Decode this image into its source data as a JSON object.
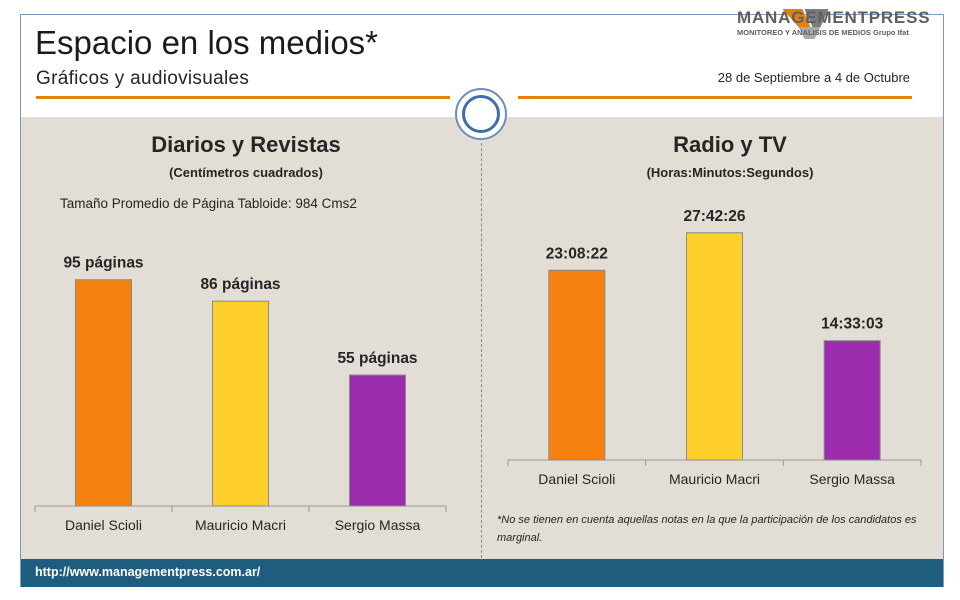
{
  "header": {
    "title": "Espacio en los medios*",
    "subtitle": "Gráficos y audiovisuales",
    "date_range": "28 de Septiembre a 4 de Octubre",
    "logo_name": "MANAGEMENTPRESS",
    "logo_tagline": "MONITOREO Y ANALISIS DE MEDIOS Grupo Ifat",
    "accent_color": "#e3820f"
  },
  "left_panel": {
    "title": "Diarios y Revistas",
    "subtitle": "(Centímetros cuadrados)",
    "note": "Tamaño Promedio de Página Tabloide: 984 Cms2"
  },
  "right_panel": {
    "title": "Radio y TV",
    "subtitle": "(Horas:Minutos:Segundos)",
    "footnote": "*No se tienen en cuenta aquellas notas en la que la participación de los candidatos es marginal."
  },
  "footer": {
    "url": "http://www.managementpress.com.ar/"
  },
  "chart_data": [
    {
      "type": "bar",
      "categories": [
        "Daniel Scioli",
        "Mauricio Macri",
        "Sergio Massa"
      ],
      "values": [
        95,
        86,
        55
      ],
      "data_labels": [
        "95 páginas",
        "86 páginas",
        "55 páginas"
      ],
      "colors": [
        "#f58210",
        "#ffd02c",
        "#9c2cad"
      ],
      "ylim": [
        0,
        110
      ],
      "grid": false,
      "legend": "none"
    },
    {
      "type": "bar",
      "categories": [
        "Daniel Scioli",
        "Mauricio Macri",
        "Sergio Massa"
      ],
      "values": [
        23.14,
        27.71,
        14.55
      ],
      "data_labels": [
        "23:08:22",
        "27:42:26",
        "14:33:03"
      ],
      "colors": [
        "#f58210",
        "#ffd02c",
        "#9c2cad"
      ],
      "ylim": [
        0,
        30
      ],
      "grid": false,
      "legend": "none"
    }
  ]
}
